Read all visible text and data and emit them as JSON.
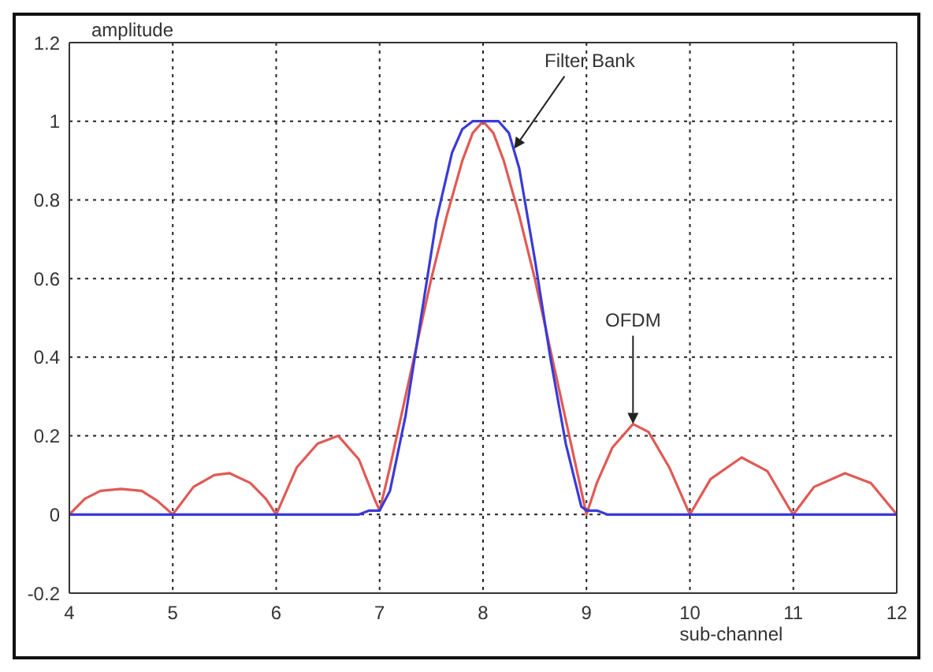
{
  "chart_data": {
    "type": "line",
    "xlabel": "sub-channel",
    "ylabel": "amplitude",
    "xlim": [
      4,
      12
    ],
    "xticks": [
      4,
      5,
      6,
      7,
      8,
      9,
      10,
      11,
      12
    ],
    "ylim": [
      -0.2,
      1.2
    ],
    "yticks": [
      -0.2,
      0,
      0.2,
      0.4,
      0.6,
      0.8,
      1,
      1.2
    ],
    "grid": true,
    "marker": "none",
    "line_style": "solid",
    "series": [
      {
        "color": "#e05a55",
        "x": [
          4,
          4.15,
          4.3,
          4.5,
          4.7,
          4.85,
          5,
          5.2,
          5.4,
          5.55,
          5.75,
          5.9,
          6,
          6.2,
          6.4,
          6.6,
          6.8,
          6.95,
          7,
          7.1,
          7.25,
          7.4,
          7.5,
          7.65,
          7.8,
          7.9,
          8,
          8.1,
          8.2,
          8.35,
          8.5,
          8.6,
          8.75,
          8.9,
          9,
          9.1,
          9.25,
          9.45,
          9.6,
          9.8,
          9.95,
          10,
          10.2,
          10.5,
          10.75,
          10.95,
          11,
          11.2,
          11.5,
          11.75,
          12
        ],
        "values": [
          0,
          0.04,
          0.06,
          0.065,
          0.06,
          0.035,
          0,
          0.07,
          0.1,
          0.105,
          0.08,
          0.04,
          0,
          0.12,
          0.18,
          0.2,
          0.14,
          0.04,
          0.01,
          0.12,
          0.3,
          0.48,
          0.6,
          0.76,
          0.9,
          0.97,
          1,
          0.97,
          0.9,
          0.76,
          0.6,
          0.48,
          0.3,
          0.12,
          0,
          0.08,
          0.17,
          0.23,
          0.21,
          0.12,
          0.03,
          0,
          0.09,
          0.145,
          0.11,
          0.02,
          0,
          0.07,
          0.105,
          0.08,
          0
        ]
      },
      {
        "color": "#3a3ad8",
        "x": [
          4,
          6.8,
          6.9,
          7,
          7.1,
          7.25,
          7.4,
          7.55,
          7.7,
          7.8,
          7.9,
          8.15,
          8.25,
          8.35,
          8.5,
          8.65,
          8.8,
          8.95,
          9,
          9.1,
          9.2,
          12
        ],
        "values": [
          0,
          0,
          0.01,
          0.01,
          0.06,
          0.25,
          0.5,
          0.75,
          0.92,
          0.98,
          1,
          1,
          0.97,
          0.88,
          0.65,
          0.4,
          0.18,
          0.02,
          0.01,
          0.01,
          0,
          0
        ]
      }
    ],
    "annotations": [
      {
        "text": "Filter Bank",
        "x": 8.3,
        "y": 0.93
      },
      {
        "text": "OFDM",
        "x": 9.45,
        "y": 0.23
      }
    ]
  }
}
